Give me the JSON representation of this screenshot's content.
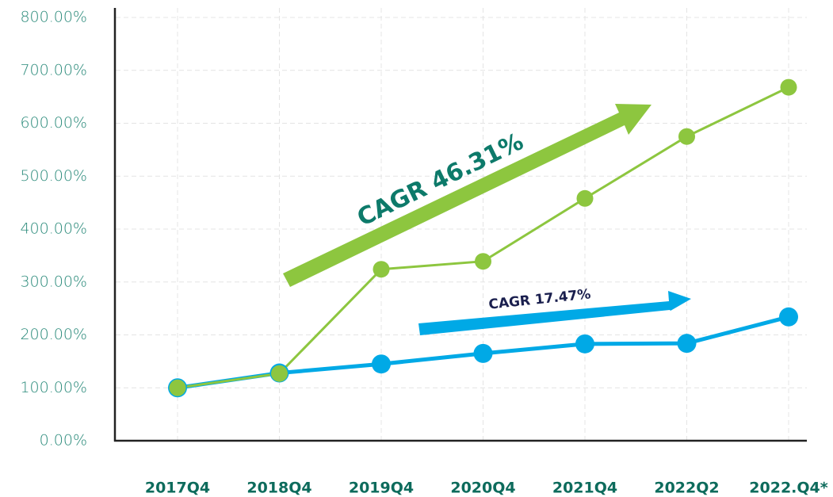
{
  "chart_data": {
    "type": "line",
    "categories": [
      "2017Q4",
      "2018Q4",
      "2019Q4",
      "2020Q4",
      "2021Q4",
      "2022Q2",
      "2022.Q4*"
    ],
    "series": [
      {
        "color": "#00a9e6",
        "values": [
          100,
          128,
          145,
          165,
          183,
          184,
          234
        ]
      },
      {
        "color": "#8dc63f",
        "values": [
          100,
          127,
          324,
          339,
          458,
          575,
          668
        ]
      }
    ],
    "ylim": [
      0,
      800
    ],
    "yticks": [
      {
        "value": 0,
        "label": "0.00%"
      },
      {
        "value": 100,
        "label": "100.00%"
      },
      {
        "value": 200,
        "label": "200.00%"
      },
      {
        "value": 300,
        "label": "300.00%"
      },
      {
        "value": 400,
        "label": "400.00%"
      },
      {
        "value": 500,
        "label": "500.00%"
      },
      {
        "value": 600,
        "label": "600.00%"
      },
      {
        "value": 700,
        "label": "700.00%"
      },
      {
        "value": 800,
        "label": "800.00%"
      }
    ],
    "grid": true,
    "annotations": [
      "CAGR 46.31%",
      "CAGR 17.47%"
    ]
  }
}
